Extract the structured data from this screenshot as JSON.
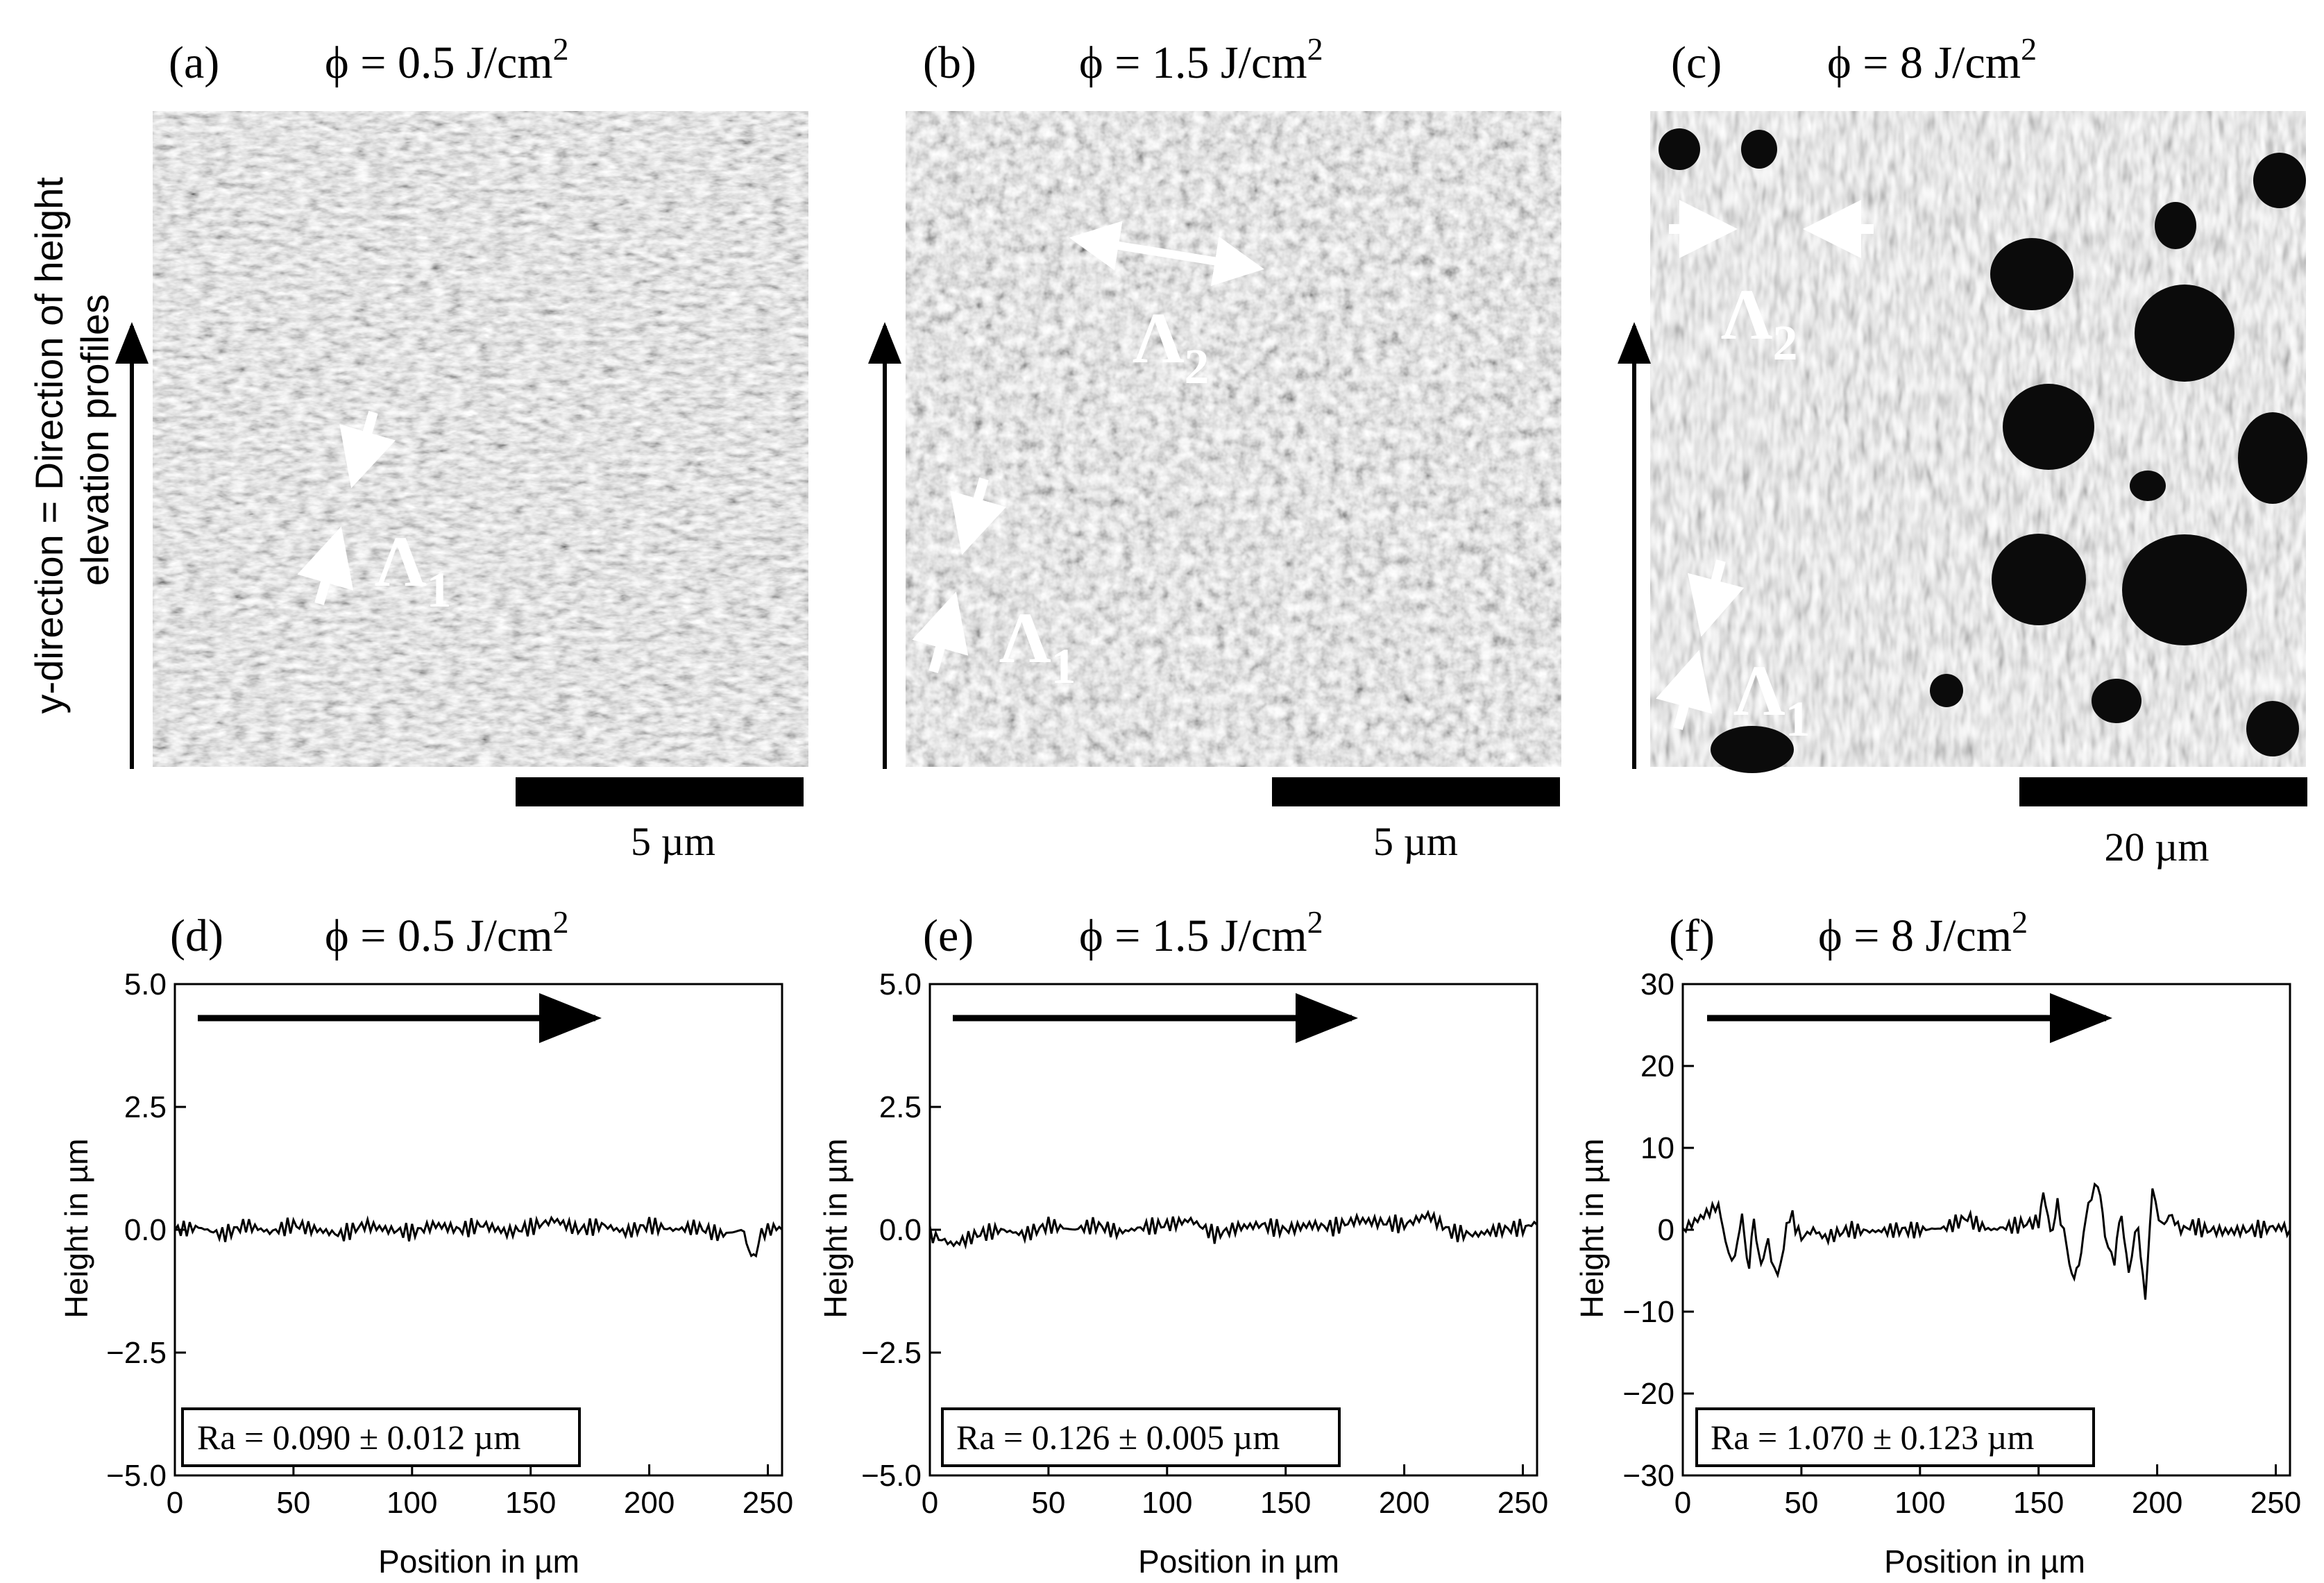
{
  "sem_panels": [
    {
      "letter": "(a)",
      "phi_prefix": "ϕ = 0.5 J/cm",
      "phi_sup": "2",
      "scalebar": "5 µm",
      "labels": [
        {
          "sym": "Λ",
          "sub": "1"
        }
      ]
    },
    {
      "letter": "(b)",
      "phi_prefix": "ϕ = 1.5 J/cm",
      "phi_sup": "2",
      "scalebar": "5 µm",
      "labels": [
        {
          "sym": "Λ",
          "sub": "2"
        },
        {
          "sym": "Λ",
          "sub": "1"
        }
      ]
    },
    {
      "letter": "(c)",
      "phi_prefix": "ϕ = 8 J/cm",
      "phi_sup": "2",
      "scalebar": "20 µm",
      "labels": [
        {
          "sym": "Λ",
          "sub": "2"
        },
        {
          "sym": "Λ",
          "sub": "1"
        }
      ]
    }
  ],
  "y_direction_label": [
    "y-direction = Direction of height",
    "elevation profiles"
  ],
  "chart_data": [
    {
      "type": "line",
      "letter": "(d)",
      "phi_prefix": "ϕ = 0.5 J/cm",
      "phi_sup": "2",
      "xlabel": "Position in µm",
      "ylabel": "Height in µm",
      "xlim": [
        0,
        256
      ],
      "ylim": [
        -5.0,
        5.0
      ],
      "xticks": [
        0,
        50,
        100,
        150,
        200,
        250
      ],
      "yticks": [
        "5.0",
        "2.5",
        "0.0",
        "−2.5",
        "−5.0"
      ],
      "ytick_values": [
        5.0,
        2.5,
        0.0,
        -2.5,
        -5.0
      ],
      "annotation": "Ra = 0.090  ± 0.012 µm",
      "series": [
        {
          "x": [
            0,
            10,
            20,
            30,
            40,
            50,
            60,
            70,
            80,
            90,
            100,
            110,
            120,
            130,
            140,
            150,
            160,
            170,
            180,
            190,
            200,
            210,
            220,
            230,
            240,
            243,
            246,
            250,
            256
          ],
          "y": [
            0.0,
            0.05,
            -0.1,
            0.1,
            -0.05,
            0.1,
            0.0,
            -0.1,
            0.1,
            0.0,
            -0.05,
            0.1,
            0.0,
            0.1,
            -0.05,
            0.05,
            0.2,
            0.0,
            0.1,
            -0.05,
            0.1,
            0.0,
            0.05,
            -0.1,
            0.0,
            -0.7,
            -0.2,
            0.05,
            0.0
          ]
        }
      ]
    },
    {
      "type": "line",
      "letter": "(e)",
      "phi_prefix": "ϕ = 1.5 J/cm",
      "phi_sup": "2",
      "xlabel": "Position in µm",
      "ylabel": "Height in µm",
      "xlim": [
        0,
        256
      ],
      "ylim": [
        -5.0,
        5.0
      ],
      "xticks": [
        0,
        50,
        100,
        150,
        200,
        250
      ],
      "yticks": [
        "5.0",
        "2.5",
        "0.0",
        "−2.5",
        "−5.0"
      ],
      "ytick_values": [
        5.0,
        2.5,
        0.0,
        -2.5,
        -5.0
      ],
      "annotation": "Ra = 0.126  ± 0.005 µm",
      "series": [
        {
          "x": [
            0,
            10,
            20,
            30,
            40,
            50,
            60,
            70,
            80,
            90,
            100,
            110,
            120,
            130,
            140,
            150,
            160,
            170,
            180,
            190,
            200,
            210,
            220,
            230,
            240,
            250,
            256
          ],
          "y": [
            -0.1,
            -0.3,
            -0.1,
            0.0,
            -0.1,
            0.1,
            0.0,
            0.1,
            -0.05,
            0.05,
            0.1,
            0.2,
            -0.1,
            0.05,
            0.1,
            0.0,
            0.1,
            0.05,
            0.2,
            0.15,
            0.1,
            0.3,
            -0.05,
            -0.1,
            0.0,
            0.05,
            0.1
          ]
        }
      ]
    },
    {
      "type": "line",
      "letter": "(f)",
      "phi_prefix": "ϕ = 8 J/cm",
      "phi_sup": "2",
      "xlabel": "Position in µm",
      "ylabel": "Height in µm",
      "xlim": [
        0,
        256
      ],
      "ylim": [
        -30,
        30
      ],
      "xticks": [
        0,
        50,
        100,
        150,
        200,
        250
      ],
      "yticks": [
        "30",
        "20",
        "10",
        "0",
        "−10",
        "−20",
        "−30"
      ],
      "ytick_values": [
        30,
        20,
        10,
        0,
        -10,
        -20,
        -30
      ],
      "annotation": "Ra = 1.070  ± 0.123 µm",
      "series": [
        {
          "x": [
            0,
            5,
            10,
            15,
            18,
            22,
            25,
            28,
            30,
            33,
            36,
            40,
            45,
            50,
            55,
            60,
            65,
            70,
            80,
            90,
            100,
            110,
            120,
            125,
            130,
            140,
            150,
            152,
            155,
            158,
            162,
            165,
            168,
            171,
            175,
            178,
            182,
            185,
            188,
            192,
            195,
            198,
            202,
            205,
            210,
            215,
            220,
            230,
            240,
            250,
            256
          ],
          "y": [
            0,
            1,
            2,
            3,
            -2,
            -4,
            2,
            -5,
            1,
            -4,
            -2,
            -6,
            2,
            -1,
            0,
            -1,
            -0.5,
            0,
            -0.2,
            0,
            0,
            0.2,
            1.5,
            0.5,
            0,
            0.5,
            1,
            4,
            0,
            3,
            -2,
            -7,
            -2,
            3,
            6,
            -1,
            -4,
            2,
            -5,
            1,
            -9,
            5,
            0,
            2,
            0,
            0.5,
            0,
            -0.2,
            0,
            0.3,
            0
          ]
        }
      ]
    }
  ]
}
